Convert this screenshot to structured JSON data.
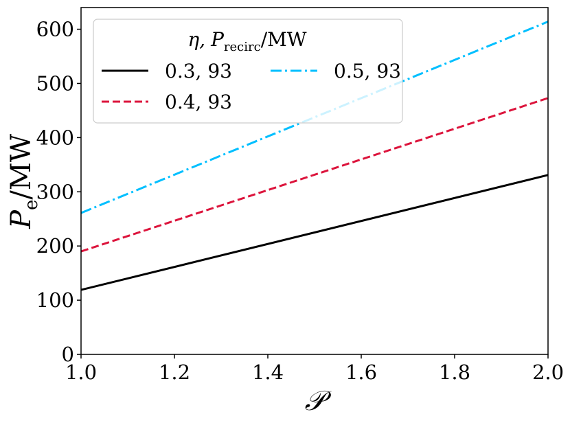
{
  "chart_data": {
    "type": "line",
    "title": "",
    "xlabel": "𝒫",
    "ylabel": {
      "main": "P",
      "sub": "e",
      "unit": "/MW"
    },
    "xlim": [
      1.0,
      2.0
    ],
    "ylim": [
      0,
      640
    ],
    "xticks": [
      1.0,
      1.2,
      1.4,
      1.6,
      1.8,
      2.0
    ],
    "xtick_labels": [
      "1.0",
      "1.2",
      "1.4",
      "1.6",
      "1.8",
      "2.0"
    ],
    "yticks": [
      0,
      100,
      200,
      300,
      400,
      500,
      600
    ],
    "ytick_labels": [
      "0",
      "100",
      "200",
      "300",
      "400",
      "500",
      "600"
    ],
    "grid": false,
    "legend": {
      "placement": "top-left",
      "title_eta": "η,",
      "title_p": "P",
      "title_sub": "recirc",
      "title_unit": "/MW"
    },
    "series": [
      {
        "name": "0.3, 93",
        "color": "#000000",
        "dash": "solid",
        "x": [
          1.0,
          2.0
        ],
        "y": [
          119,
          331
        ]
      },
      {
        "name": "0.4, 93",
        "color": "#dc143c",
        "dash": "dashed",
        "x": [
          1.0,
          2.0
        ],
        "y": [
          190,
          473
        ]
      },
      {
        "name": "0.5, 93",
        "color": "#00bfff",
        "dash": "dashdot",
        "x": [
          1.0,
          2.0
        ],
        "y": [
          261,
          614
        ]
      }
    ]
  }
}
